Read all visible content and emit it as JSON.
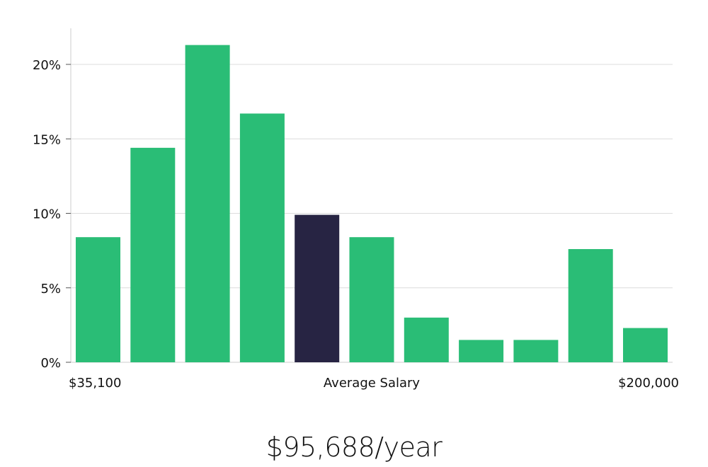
{
  "chart_data": {
    "type": "bar",
    "title": "",
    "xlabel": "Average Salary",
    "ylabel": "",
    "x_range_labels": {
      "min": "$35,100",
      "max": "$200,000"
    },
    "values": [
      8.4,
      14.4,
      21.3,
      16.7,
      9.9,
      8.4,
      3.0,
      1.5,
      1.5,
      7.6,
      2.3
    ],
    "highlight_index": 4,
    "ylim": [
      0,
      22.5
    ],
    "yticks": [
      0,
      5,
      10,
      15,
      20
    ],
    "ytick_labels": [
      "0%",
      "5%",
      "10%",
      "15%",
      "20%"
    ],
    "grid": true,
    "colors": {
      "bar": "#2abd76",
      "highlight": "#272443",
      "grid": "#dcdcdc",
      "axis": "#cccccc"
    }
  },
  "summary": {
    "salary_text": "$95,688/year"
  }
}
